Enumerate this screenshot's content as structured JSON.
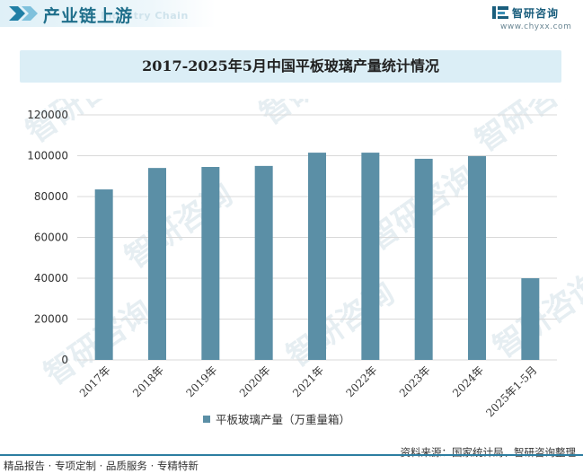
{
  "header": {
    "title": "产业链上游",
    "subtitle": "Industry Chain",
    "brand_name": "智研咨询",
    "brand_url": "www.chyxx.com"
  },
  "watermark_text": "智研咨询",
  "chart_data": {
    "type": "bar",
    "title": "2017-2025年5月中国平板玻璃产量统计情况",
    "categories": [
      "2017年",
      "2018年",
      "2019年",
      "2020年",
      "2021年",
      "2022年",
      "2023年",
      "2024年",
      "2025年1-5月"
    ],
    "series": [
      {
        "name": "平板玻璃产量（万重量箱）",
        "color": "#5b8fa6",
        "values": [
          83500,
          94000,
          94500,
          95000,
          101500,
          101500,
          98500,
          99800,
          40000
        ]
      }
    ],
    "ylim": [
      0,
      120000
    ],
    "yticks": [
      "0",
      "20000",
      "40000",
      "60000",
      "80000",
      "100000",
      "120000"
    ],
    "xlabel": "",
    "ylabel": "",
    "grid": true,
    "legend": "bottom-center"
  },
  "footer": {
    "left": "精品报告 · 专项定制 · 品质服务 · 专精特新",
    "source": "资料来源：国家统计局、智研咨询整理"
  }
}
